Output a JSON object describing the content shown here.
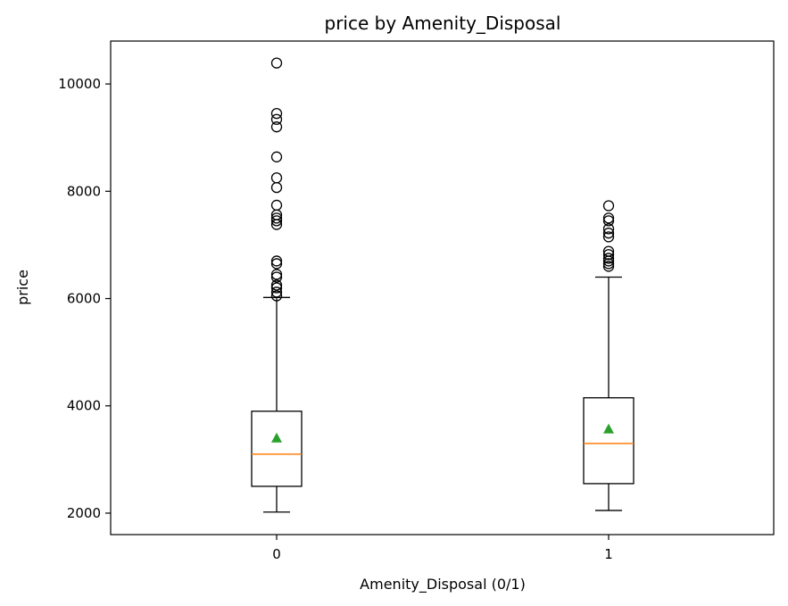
{
  "chart_data": {
    "type": "boxplot",
    "title": "price by Amenity_Disposal",
    "xlabel": "Amenity_Disposal (0/1)",
    "ylabel": "price",
    "categories": [
      "0",
      "1"
    ],
    "ylim": [
      1600,
      10800
    ],
    "yticks": [
      2000,
      4000,
      6000,
      8000,
      10000
    ],
    "grid": false,
    "colors": {
      "box": "#000000",
      "median": "#ff7f0e",
      "mean": "#2ca02c",
      "flier": "#000000"
    },
    "boxes": [
      {
        "category": "0",
        "whisker_low": 2020,
        "q1": 2500,
        "median": 3100,
        "q3": 3900,
        "whisker_high": 6020,
        "mean": 3400,
        "outliers": [
          6050,
          6120,
          6200,
          6250,
          6400,
          6450,
          6650,
          6700,
          7380,
          7450,
          7500,
          7560,
          7740,
          8070,
          8250,
          8640,
          9200,
          9340,
          9450,
          10390
        ]
      },
      {
        "category": "1",
        "whisker_low": 2050,
        "q1": 2550,
        "median": 3300,
        "q3": 4150,
        "whisker_high": 6400,
        "mean": 3570,
        "outliers": [
          6600,
          6650,
          6700,
          6750,
          6820,
          6880,
          7150,
          7220,
          7300,
          7450,
          7500,
          7730
        ]
      }
    ]
  }
}
